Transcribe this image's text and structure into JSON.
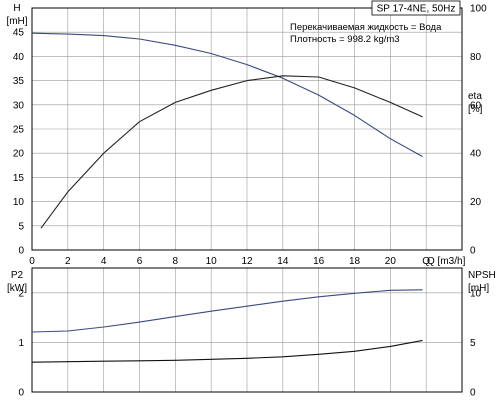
{
  "chart_data": [
    {
      "type": "line",
      "title": "SP 17-4NE, 50Hz",
      "annotations": [
        "Перекачиваемая жидкость = Вода",
        "Плотность = 998.2 kg/m3"
      ],
      "xlabel": "Q [m3/h]",
      "xlim": [
        0,
        24
      ],
      "x_ticks": [
        0,
        2,
        4,
        6,
        8,
        10,
        12,
        14,
        16,
        18,
        20,
        22
      ],
      "x_tick_labels": [
        "0",
        "2",
        "4",
        "6",
        "8",
        "10",
        "12",
        "14",
        "16",
        "18",
        "20",
        "Q"
      ],
      "y_axis_left": {
        "label_top": "H",
        "label_unit": "[mH]",
        "lim": [
          0,
          50
        ],
        "ticks": [
          0,
          5,
          10,
          15,
          20,
          25,
          30,
          35,
          40,
          45
        ],
        "tick_labels": [
          "0",
          "5",
          "10",
          "15",
          "20",
          "25",
          "30",
          "35",
          "40",
          "45"
        ]
      },
      "y_axis_right": {
        "label_top": "eta",
        "label_unit": "[%]",
        "lim": [
          0,
          100
        ],
        "ticks": [
          0,
          20,
          40,
          60,
          80,
          100
        ],
        "tick_labels": [
          "0",
          "20",
          "40",
          "60",
          "80",
          "100"
        ]
      },
      "grid": true,
      "series": [
        {
          "axis": "left",
          "color": "#3a4a82",
          "x": [
            0,
            2,
            4,
            6,
            8,
            10,
            12,
            14,
            16,
            18,
            20,
            21.8
          ],
          "y": [
            44.8,
            44.6,
            44.3,
            43.6,
            42.3,
            40.6,
            38.3,
            35.5,
            32.0,
            27.8,
            23.0,
            19.3
          ]
        },
        {
          "axis": "right",
          "color": "#222222",
          "x": [
            0.5,
            2,
            4,
            6,
            8,
            10,
            12,
            14,
            16,
            18,
            20,
            21.8
          ],
          "y": [
            9,
            24,
            40,
            53,
            61,
            66,
            70,
            72,
            71.5,
            67,
            61,
            55
          ]
        }
      ]
    },
    {
      "type": "line",
      "xlim": [
        0,
        24
      ],
      "y_axis_left": {
        "label_top": "P2",
        "label_unit": "[kW]",
        "lim": [
          0,
          2.5
        ],
        "ticks": [
          0,
          1,
          2
        ],
        "tick_labels": [
          "0",
          "1",
          "2"
        ]
      },
      "y_axis_right": {
        "label_top": "NPSH",
        "label_unit": "[mH]",
        "lim": [
          0,
          12.5
        ],
        "ticks": [
          0,
          5,
          10
        ],
        "tick_labels": [
          "0",
          "5",
          "10"
        ]
      },
      "grid": true,
      "series": [
        {
          "axis": "left",
          "color": "#3a4a82",
          "x": [
            0,
            2,
            4,
            6,
            8,
            10,
            12,
            14,
            16,
            18,
            20,
            21.8
          ],
          "y": [
            1.21,
            1.23,
            1.31,
            1.41,
            1.52,
            1.63,
            1.73,
            1.83,
            1.92,
            1.99,
            2.05,
            2.06
          ]
        },
        {
          "axis": "right",
          "color": "#111111",
          "x": [
            0,
            2,
            4,
            6,
            8,
            10,
            12,
            14,
            16,
            18,
            20,
            21.8
          ],
          "y": [
            3.0,
            3.05,
            3.1,
            3.15,
            3.2,
            3.3,
            3.4,
            3.55,
            3.8,
            4.1,
            4.6,
            5.2
          ]
        }
      ]
    }
  ]
}
